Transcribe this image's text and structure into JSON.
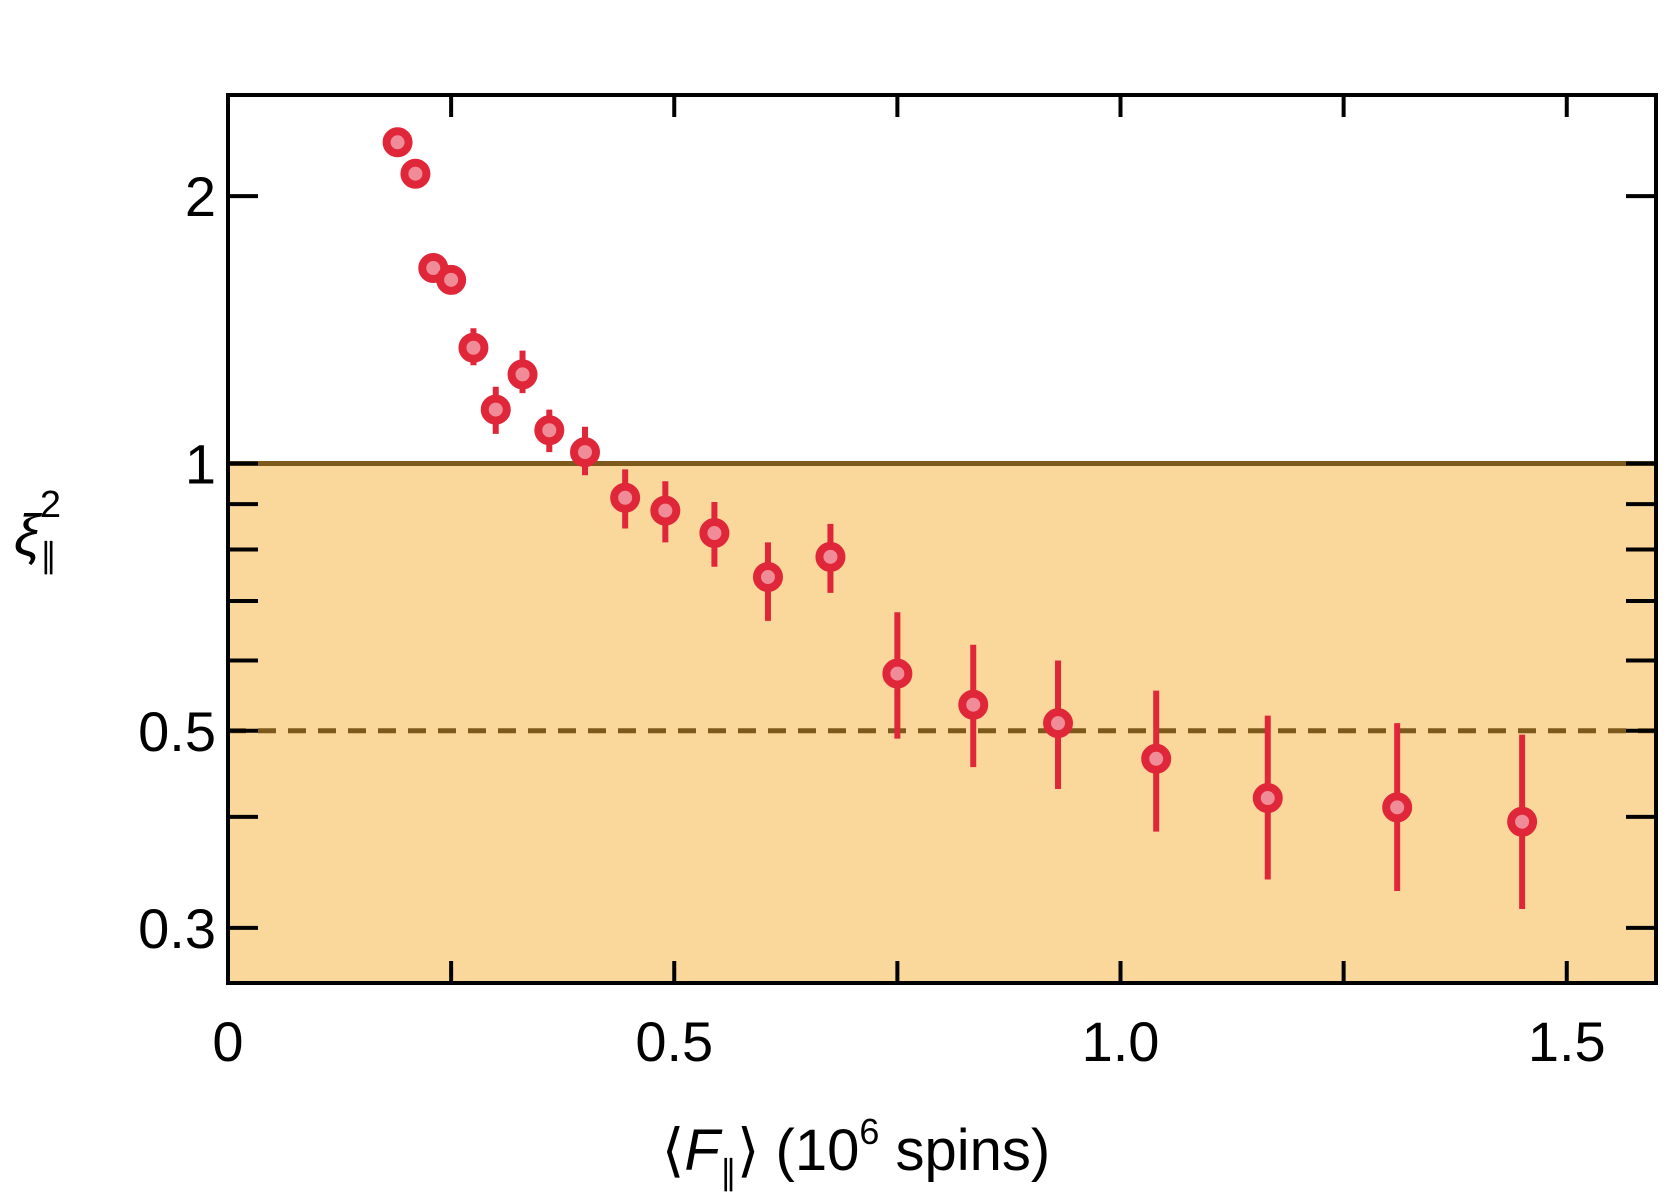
{
  "chart_data": {
    "type": "scatter",
    "xlabel": {
      "prefix": "⟨",
      "var": "F",
      "sub": "∥",
      "suffix": "⟩ (10",
      "sup": "6",
      "end": " spins)"
    },
    "ylabel": {
      "var": "ξ",
      "sub": "∥",
      "sup": "2"
    },
    "xlim": [
      0,
      1.6
    ],
    "ylim": [
      0.26,
      2.6
    ],
    "yscale": "log",
    "xticks": [
      0,
      0.5,
      1.0,
      1.5
    ],
    "xtick_labels": [
      "0",
      "0.5",
      "1.0",
      "1.5"
    ],
    "yticks": [
      0.3,
      0.5,
      1,
      2
    ],
    "ytick_labels": [
      "0.3",
      "0.5",
      "1",
      "2"
    ],
    "y_minor_ticks": [
      0.4,
      0.6,
      0.7,
      0.8,
      0.9
    ],
    "x_minor_ticks": [
      0.25,
      0.75,
      1.25
    ],
    "grid": false,
    "shaded_region": {
      "y_from": 0.26,
      "y_to": 1.0,
      "color": "#fad89c"
    },
    "hlines": [
      {
        "y": 1.0,
        "style": "solid",
        "color": "#7d5a1c"
      },
      {
        "y": 0.5,
        "style": "dashed",
        "color": "#7d5a1c"
      }
    ],
    "series": [
      {
        "color": "#e0273a",
        "fill": "#f08c98",
        "x": [
          0.19,
          0.21,
          0.23,
          0.25,
          0.275,
          0.3,
          0.33,
          0.36,
          0.4,
          0.445,
          0.49,
          0.545,
          0.605,
          0.675,
          0.75,
          0.835,
          0.93,
          1.04,
          1.165,
          1.31,
          1.45
        ],
        "y": [
          2.3,
          2.12,
          1.66,
          1.61,
          1.35,
          1.15,
          1.26,
          1.09,
          1.03,
          0.915,
          0.885,
          0.835,
          0.745,
          0.785,
          0.58,
          0.535,
          0.51,
          0.465,
          0.42,
          0.41,
          0.395
        ],
        "err_low": [
          0.02,
          0.02,
          0.05,
          0.05,
          0.06,
          0.07,
          0.06,
          0.06,
          0.06,
          0.07,
          0.07,
          0.07,
          0.08,
          0.07,
          0.09,
          0.08,
          0.08,
          0.08,
          0.08,
          0.08,
          0.08
        ],
        "err_high": [
          0.02,
          0.02,
          0.05,
          0.05,
          0.07,
          0.07,
          0.08,
          0.06,
          0.07,
          0.07,
          0.07,
          0.07,
          0.07,
          0.07,
          0.1,
          0.09,
          0.09,
          0.09,
          0.1,
          0.1,
          0.1
        ]
      }
    ]
  }
}
